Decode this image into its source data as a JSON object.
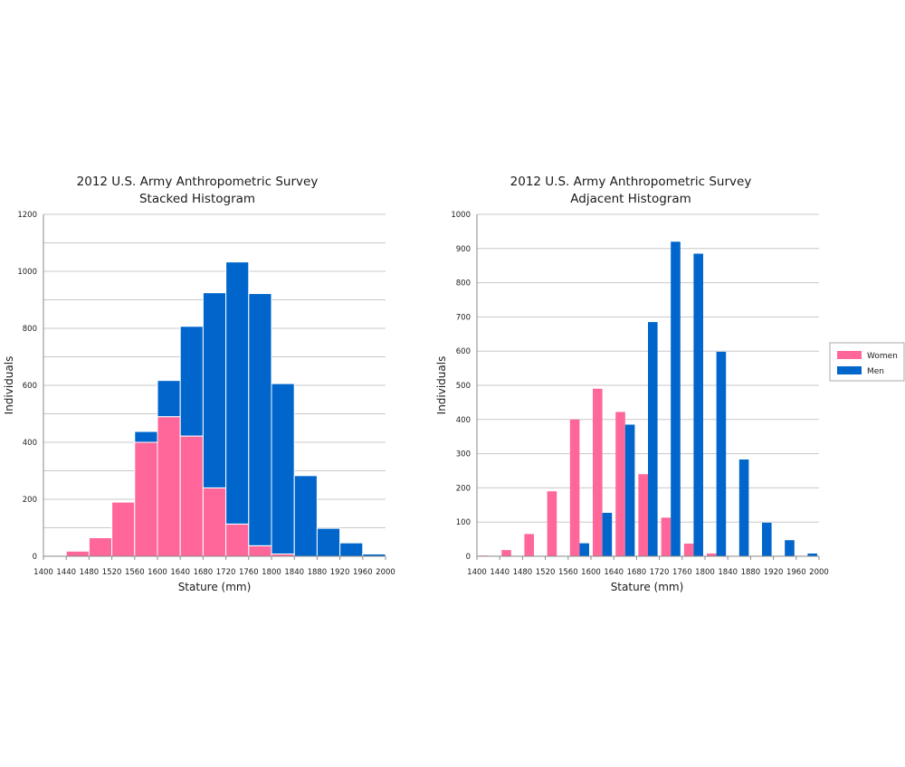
{
  "colors": {
    "women": "#ff6699",
    "men": "#0066cc",
    "grid": "#c8c8c8"
  },
  "chart_data": [
    {
      "type": "bar",
      "mode": "stacked",
      "title": [
        "2012 U.S. Army Anthropometric Survey",
        "Stacked Histogram"
      ],
      "xlabel": "Stature (mm)",
      "ylabel": "Individuals",
      "xlim": [
        1400,
        2000
      ],
      "ylim": [
        0,
        1200
      ],
      "x_ticks": [
        1400,
        1440,
        1480,
        1520,
        1560,
        1600,
        1640,
        1680,
        1720,
        1760,
        1800,
        1840,
        1880,
        1920,
        1960,
        2000
      ],
      "y_ticks": [
        0,
        200,
        400,
        600,
        800,
        1000,
        1200
      ],
      "bin_starts": [
        1400,
        1440,
        1480,
        1520,
        1560,
        1600,
        1640,
        1680,
        1720,
        1760,
        1800,
        1840,
        1880,
        1920,
        1960
      ],
      "bin_width": 40,
      "grid": true,
      "legend": "none",
      "series": [
        {
          "name": "Women",
          "values": [
            2,
            18,
            65,
            190,
            400,
            490,
            422,
            240,
            113,
            37,
            8,
            0,
            0,
            0,
            0
          ]
        },
        {
          "name": "Men",
          "values": [
            0,
            0,
            0,
            0,
            38,
            127,
            385,
            685,
            920,
            885,
            598,
            283,
            98,
            47,
            8
          ]
        }
      ]
    },
    {
      "type": "bar",
      "mode": "grouped",
      "title": [
        "2012 U.S. Army Anthropometric Survey",
        "Adjacent Histogram"
      ],
      "xlabel": "Stature (mm)",
      "ylabel": "Individuals",
      "xlim": [
        1400,
        2000
      ],
      "ylim": [
        0,
        1000
      ],
      "x_ticks": [
        1400,
        1440,
        1480,
        1520,
        1560,
        1600,
        1640,
        1680,
        1720,
        1760,
        1800,
        1840,
        1880,
        1920,
        1960,
        2000
      ],
      "y_ticks": [
        0,
        100,
        200,
        300,
        400,
        500,
        600,
        700,
        800,
        900,
        1000
      ],
      "bin_starts": [
        1400,
        1440,
        1480,
        1520,
        1560,
        1600,
        1640,
        1680,
        1720,
        1760,
        1800,
        1840,
        1880,
        1920,
        1960
      ],
      "bin_width": 40,
      "grid": true,
      "legend": "right",
      "series": [
        {
          "name": "Women",
          "values": [
            2,
            18,
            65,
            190,
            400,
            490,
            422,
            240,
            113,
            37,
            8,
            0,
            0,
            0,
            0
          ]
        },
        {
          "name": "Men",
          "values": [
            0,
            0,
            0,
            0,
            38,
            127,
            385,
            685,
            920,
            885,
            598,
            283,
            98,
            47,
            8
          ]
        }
      ]
    }
  ]
}
